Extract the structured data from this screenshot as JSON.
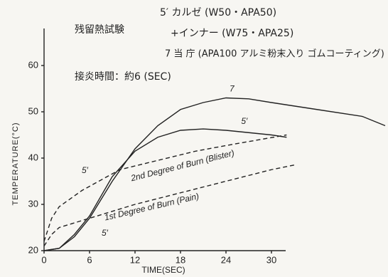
{
  "chart_data": {
    "type": "line",
    "notes": [
      "残留熱試験",
      "5′ カルゼ (W50・APA50)",
      "+インナー (W75・APA25)",
      "7 当 庁 (APA100 アルミ粉末入り ゴムコーティング)",
      "接炎時間：約6 (SEC)"
    ],
    "x_label": "TIME(SEC)",
    "y_label": "TEMPERATURE(°C)",
    "xlim": [
      0,
      45
    ],
    "xticks": [
      0,
      6,
      12,
      18,
      24,
      30
    ],
    "ylim": [
      20,
      68
    ],
    "yticks": [
      20,
      30,
      40,
      50,
      60
    ],
    "series": [
      {
        "name": "7",
        "color": "#222",
        "dash": false,
        "x": [
          0,
          2,
          4,
          6,
          9,
          12,
          15,
          18,
          21,
          24,
          27,
          30,
          36,
          42,
          45
        ],
        "values": [
          20,
          20.5,
          23,
          27,
          35,
          42,
          47,
          50.5,
          52,
          53,
          52.8,
          52,
          50.5,
          49,
          47
        ]
      },
      {
        "name": "5′",
        "color": "#222",
        "dash": false,
        "x": [
          0,
          2,
          4,
          6,
          9,
          12,
          15,
          18,
          21,
          24,
          27,
          30,
          32
        ],
        "values": [
          20,
          20.5,
          23.5,
          27.5,
          36,
          41.5,
          44.5,
          46,
          46.3,
          46,
          45.5,
          45,
          44.5
        ]
      },
      {
        "name": "2nd Degree of Burn (Blister)",
        "color": "#222",
        "dash": true,
        "x": [
          0,
          1,
          2,
          5,
          10,
          15,
          20,
          25,
          32
        ],
        "values": [
          22,
          27,
          29.5,
          33,
          37.5,
          39.5,
          41.5,
          43,
          45
        ]
      },
      {
        "name": "1st Degree of Burn (Pain)",
        "color": "#222",
        "dash": true,
        "x": [
          0,
          1,
          2,
          6,
          12,
          18,
          24,
          30,
          33
        ],
        "values": [
          21,
          23.5,
          25,
          27,
          30,
          32.5,
          35,
          37.5,
          38.5
        ]
      }
    ],
    "annotations": [
      "5′",
      "5′"
    ]
  }
}
